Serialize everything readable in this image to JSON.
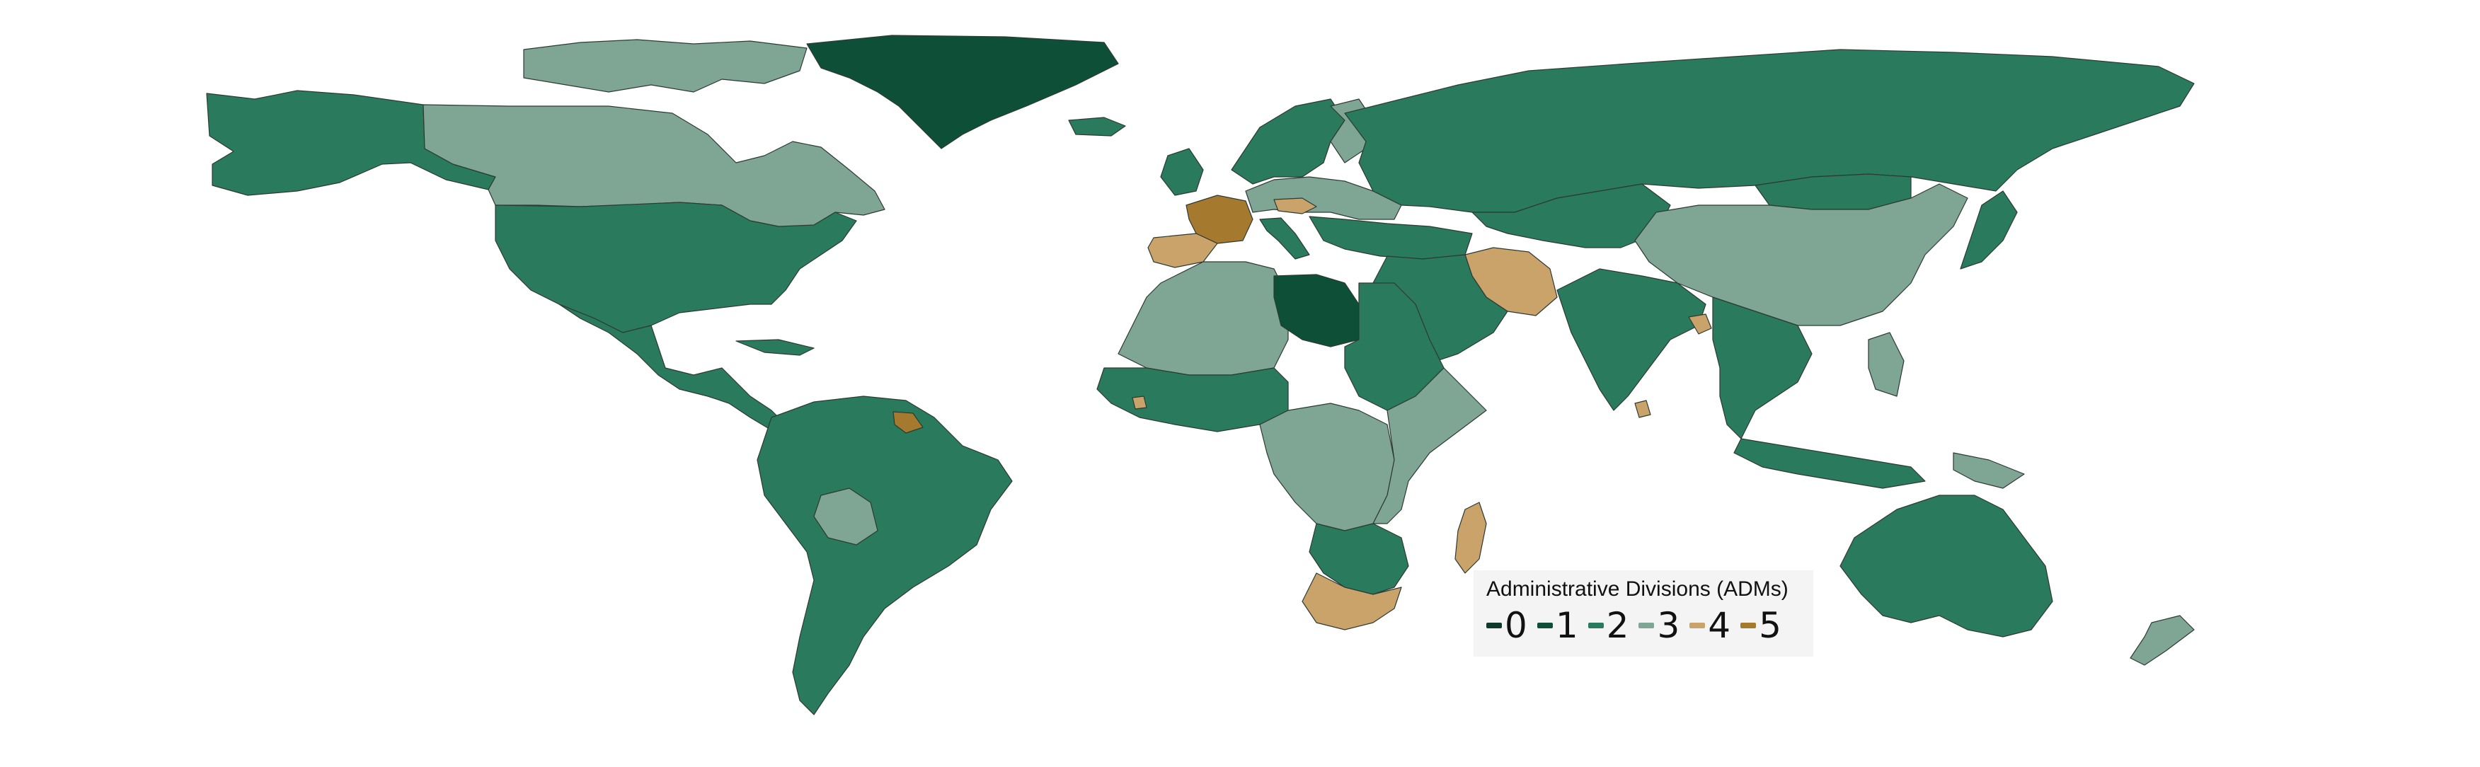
{
  "legend": {
    "title": "Administrative Divisions (ADMs)",
    "items": [
      {
        "label": "0",
        "color": "#0e3b2b"
      },
      {
        "label": "1",
        "color": "#0d4f37"
      },
      {
        "label": "2",
        "color": "#2a7a5e"
      },
      {
        "label": "3",
        "color": "#7fa595"
      },
      {
        "label": "4",
        "color": "#c9a36a"
      },
      {
        "label": "5",
        "color": "#a67a2e"
      }
    ]
  },
  "regions": [
    {
      "name": "alaska",
      "adm": 2
    },
    {
      "name": "canada",
      "adm": 3
    },
    {
      "name": "canadian-arctic-islands",
      "adm": 3
    },
    {
      "name": "greenland",
      "adm": 1
    },
    {
      "name": "iceland",
      "adm": 2
    },
    {
      "name": "united-states",
      "adm": 2
    },
    {
      "name": "mexico-central-america",
      "adm": 2
    },
    {
      "name": "cuba",
      "adm": 2
    },
    {
      "name": "south-america",
      "adm": 2
    },
    {
      "name": "bolivia",
      "adm": 3
    },
    {
      "name": "suriname-french-guiana",
      "adm": 5
    },
    {
      "name": "scandinavia",
      "adm": 2
    },
    {
      "name": "finland",
      "adm": 3
    },
    {
      "name": "united-kingdom",
      "adm": 2
    },
    {
      "name": "france",
      "adm": 5
    },
    {
      "name": "iberia",
      "adm": 4
    },
    {
      "name": "central-europe",
      "adm": 3
    },
    {
      "name": "hungary",
      "adm": 4
    },
    {
      "name": "italy",
      "adm": 2
    },
    {
      "name": "balkans-turkey",
      "adm": 2
    },
    {
      "name": "russia",
      "adm": 2
    },
    {
      "name": "iran",
      "adm": 4
    },
    {
      "name": "middle-east",
      "adm": 2
    },
    {
      "name": "central-asia",
      "adm": 2
    },
    {
      "name": "china",
      "adm": 3
    },
    {
      "name": "mongolia",
      "adm": 2
    },
    {
      "name": "india",
      "adm": 2
    },
    {
      "name": "bangladesh",
      "adm": 4
    },
    {
      "name": "sri-lanka",
      "adm": 4
    },
    {
      "name": "southeast-asia",
      "adm": 2
    },
    {
      "name": "japan",
      "adm": 2
    },
    {
      "name": "philippines",
      "adm": 3
    },
    {
      "name": "indonesia",
      "adm": 2
    },
    {
      "name": "papua-new-guinea",
      "adm": 3
    },
    {
      "name": "australia",
      "adm": 2
    },
    {
      "name": "new-zealand",
      "adm": 3
    },
    {
      "name": "north-africa-west",
      "adm": 3
    },
    {
      "name": "libya",
      "adm": 1
    },
    {
      "name": "egypt-sudan",
      "adm": 2
    },
    {
      "name": "west-africa",
      "adm": 2
    },
    {
      "name": "sierra-leone",
      "adm": 4
    },
    {
      "name": "central-africa",
      "adm": 3
    },
    {
      "name": "east-africa",
      "adm": 3
    },
    {
      "name": "southern-africa",
      "adm": 2
    },
    {
      "name": "south-africa",
      "adm": 4
    },
    {
      "name": "madagascar",
      "adm": 4
    }
  ]
}
